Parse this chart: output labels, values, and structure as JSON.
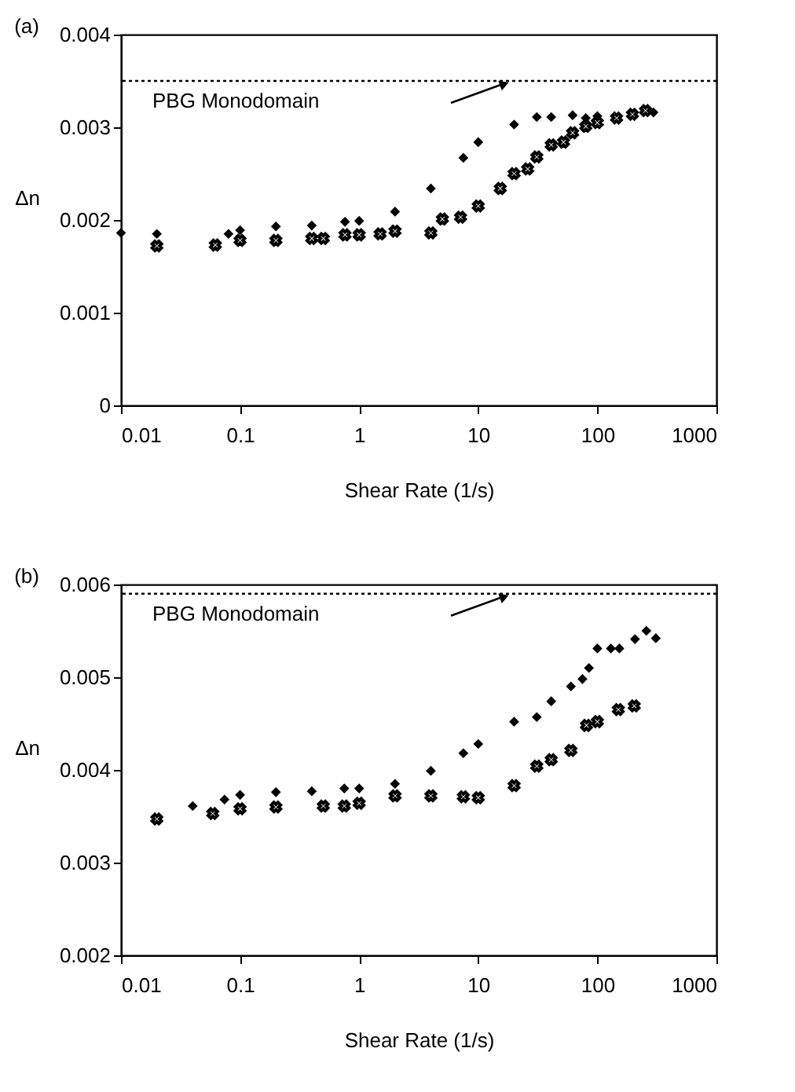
{
  "chart_data": [
    {
      "type": "scatter",
      "title": "(a)",
      "xlabel": "Shear Rate (1/s)",
      "ylabel": "Δn",
      "log": "x",
      "grid": false,
      "xlim": [
        0.01,
        1000
      ],
      "xticks": [
        0.01,
        0.1,
        1,
        10,
        100,
        1000
      ],
      "ylim": [
        0,
        0.004
      ],
      "yticks": [
        0,
        0.001,
        0.002,
        0.003,
        0.004
      ],
      "ref_lines": [
        {
          "axis": "y",
          "value": 0.0035,
          "label": "PBG Monodomain",
          "line_style": "dotted",
          "color": "#000000"
        }
      ],
      "series": [
        {
          "color": "#000000",
          "marker": "diamond",
          "x": [
            0.01,
            0.02,
            0.08,
            0.1,
            0.2,
            0.4,
            0.76,
            1,
            2,
            4,
            7.5,
            10,
            20,
            31,
            41,
            62,
            80,
            100,
            150,
            197,
            296
          ],
          "values": [
            0.00186,
            0.00185,
            0.00185,
            0.00189,
            0.00193,
            0.00194,
            0.00198,
            0.00199,
            0.00209,
            0.00234,
            0.00267,
            0.00284,
            0.00303,
            0.00311,
            0.00311,
            0.00313,
            0.0031,
            0.00312,
            null,
            null,
            0.00316
          ]
        },
        {
          "color": "#000000",
          "marker": "cross",
          "x": [
            0.02,
            0.062,
            0.1,
            0.2,
            0.4,
            0.5,
            0.76,
            1,
            1.5,
            2,
            4,
            5,
            7.1,
            10,
            15.3,
            20,
            26,
            31,
            41,
            52,
            62,
            80,
            100,
            145,
            197,
            254
          ],
          "values": [
            0.00172,
            0.00173,
            0.00178,
            0.00178,
            0.0018,
            0.0018,
            0.00184,
            0.00184,
            0.00185,
            0.00188,
            0.00186,
            0.00201,
            0.00203,
            0.00215,
            0.00234,
            0.0025,
            0.00255,
            0.00268,
            0.00281,
            0.00284,
            0.00294,
            0.00301,
            0.00305,
            0.0031,
            0.00314,
            0.00318
          ]
        }
      ]
    },
    {
      "type": "scatter",
      "title": "(b)",
      "xlabel": "Shear Rate (1/s)",
      "ylabel": "Δn",
      "log": "x",
      "grid": false,
      "xlim": [
        0.01,
        1000
      ],
      "xticks": [
        0.01,
        0.1,
        1,
        10,
        100,
        1000
      ],
      "ylim": [
        0.002,
        0.006
      ],
      "yticks": [
        0.002,
        0.003,
        0.004,
        0.005,
        0.006
      ],
      "ref_lines": [
        {
          "axis": "y",
          "value": 0.0059,
          "label": "PBG Monodomain",
          "line_style": "dotted",
          "color": "#000000"
        }
      ],
      "series": [
        {
          "color": "#000000",
          "marker": "diamond",
          "x": [
            0.04,
            0.074,
            0.1,
            0.2,
            0.4,
            0.75,
            1,
            2,
            4,
            7.5,
            10,
            20,
            31,
            41,
            60,
            75,
            85,
            100,
            130,
            153,
            207,
            258,
            310
          ],
          "values": [
            0.00361,
            0.00368,
            0.00373,
            0.00376,
            0.00377,
            0.0038,
            0.0038,
            0.00385,
            0.00399,
            0.00418,
            0.00428,
            0.00452,
            0.00457,
            0.00474,
            0.0049,
            0.00498,
            0.0051,
            0.00531,
            0.00531,
            0.00531,
            0.00541,
            0.0055,
            0.00542
          ]
        },
        {
          "color": "#000000",
          "marker": "cross",
          "x": [
            0.02,
            0.059,
            0.1,
            0.2,
            0.5,
            0.75,
            1,
            2,
            4,
            7.5,
            10,
            20,
            31,
            41,
            60,
            81,
            100,
            150,
            204
          ],
          "values": [
            0.00347,
            0.00353,
            0.00358,
            0.0036,
            0.00361,
            0.00361,
            0.00364,
            0.00372,
            0.00372,
            0.00371,
            0.0037,
            0.00383,
            0.00404,
            0.00411,
            0.00421,
            0.00448,
            0.00452,
            0.00465,
            0.00469
          ]
        }
      ]
    }
  ]
}
